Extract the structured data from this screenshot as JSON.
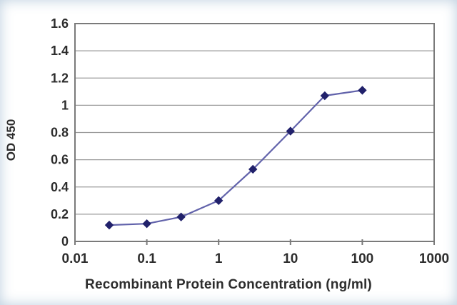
{
  "figure": {
    "xlabel": "Recombinant Protein Concentration (ng/ml)",
    "ylabel": "OD 450"
  },
  "chart_data": {
    "type": "line",
    "title": "",
    "xlabel": "Recombinant Protein Concentration (ng/ml)",
    "ylabel": "OD 450",
    "x_scale": "log",
    "x": [
      0.03,
      0.1,
      0.3,
      1,
      3,
      10,
      30,
      100
    ],
    "y": [
      0.12,
      0.13,
      0.18,
      0.3,
      0.53,
      0.81,
      1.07,
      1.11
    ],
    "xlim": [
      0.01,
      1000
    ],
    "ylim": [
      0,
      1.6
    ],
    "x_ticks": [
      0.01,
      0.1,
      1,
      10,
      100,
      1000
    ],
    "x_tick_labels": [
      "0.01",
      "0.1",
      "1",
      "10",
      "100",
      "1000"
    ],
    "y_ticks": [
      0,
      0.2,
      0.4,
      0.6,
      0.8,
      1,
      1.2,
      1.4,
      1.6
    ],
    "y_tick_labels": [
      "0",
      "0.2",
      "0.4",
      "0.6",
      "0.8",
      "1",
      "1.2",
      "1.4",
      "1.6"
    ],
    "grid": true,
    "legend": false,
    "marker_shape": "diamond",
    "line_color": "#6263ab",
    "marker_color": "#21216b",
    "gridline_color": "#9b9b9b",
    "frame_color": "#7a7a7a",
    "text_color": "#2d2d2d"
  }
}
